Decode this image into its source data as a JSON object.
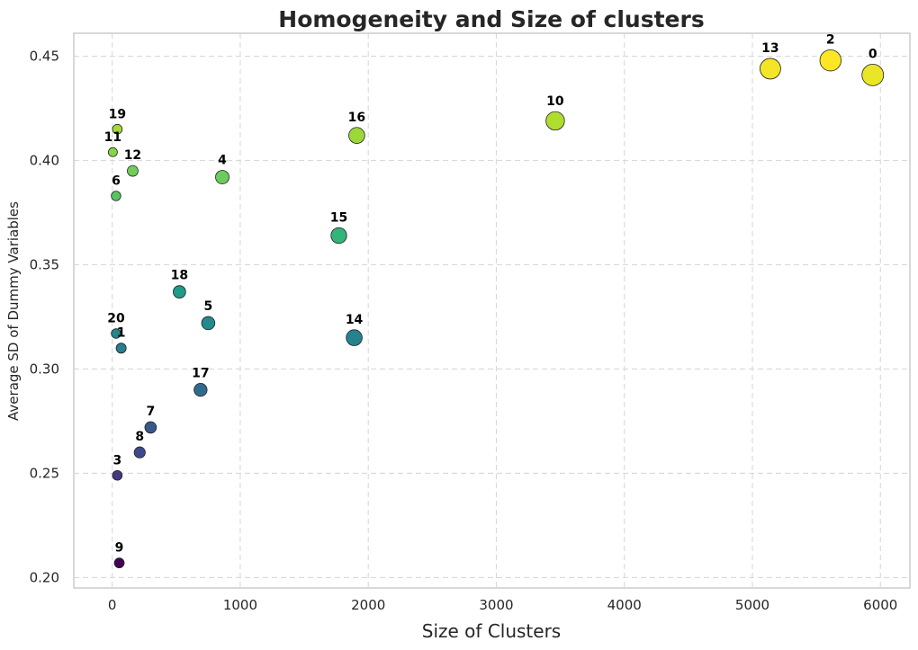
{
  "chart_data": {
    "type": "scatter",
    "title": "Homogeneity and Size of clusters",
    "xlabel": "Size of Clusters",
    "ylabel": "Average SD of Dummy Variables",
    "xlim": [
      -300,
      6230
    ],
    "ylim": [
      0.195,
      0.461
    ],
    "xticks": [
      0,
      1000,
      2000,
      3000,
      4000,
      5000,
      6000
    ],
    "yticks": [
      0.2,
      0.25,
      0.3,
      0.35,
      0.4,
      0.45
    ],
    "xtick_labels": [
      "0",
      "1000",
      "2000",
      "3000",
      "4000",
      "5000",
      "6000"
    ],
    "ytick_labels": [
      "0.20",
      "0.25",
      "0.30",
      "0.35",
      "0.40",
      "0.45"
    ],
    "grid": true,
    "colormap": "viridis",
    "points": [
      {
        "label": "0",
        "x": 5940,
        "y": 0.441
      },
      {
        "label": "1",
        "x": 70,
        "y": 0.31
      },
      {
        "label": "2",
        "x": 5610,
        "y": 0.448
      },
      {
        "label": "3",
        "x": 40,
        "y": 0.249
      },
      {
        "label": "4",
        "x": 860,
        "y": 0.392
      },
      {
        "label": "5",
        "x": 750,
        "y": 0.322
      },
      {
        "label": "6",
        "x": 30,
        "y": 0.383
      },
      {
        "label": "7",
        "x": 300,
        "y": 0.272
      },
      {
        "label": "8",
        "x": 215,
        "y": 0.26
      },
      {
        "label": "9",
        "x": 55,
        "y": 0.207
      },
      {
        "label": "10",
        "x": 3460,
        "y": 0.419
      },
      {
        "label": "11",
        "x": 5,
        "y": 0.404
      },
      {
        "label": "12",
        "x": 160,
        "y": 0.395
      },
      {
        "label": "13",
        "x": 5140,
        "y": 0.444
      },
      {
        "label": "14",
        "x": 1890,
        "y": 0.315
      },
      {
        "label": "15",
        "x": 1770,
        "y": 0.364
      },
      {
        "label": "16",
        "x": 1910,
        "y": 0.412
      },
      {
        "label": "17",
        "x": 690,
        "y": 0.29
      },
      {
        "label": "18",
        "x": 525,
        "y": 0.337
      },
      {
        "label": "19",
        "x": 40,
        "y": 0.415
      },
      {
        "label": "20",
        "x": 30,
        "y": 0.317
      }
    ]
  }
}
